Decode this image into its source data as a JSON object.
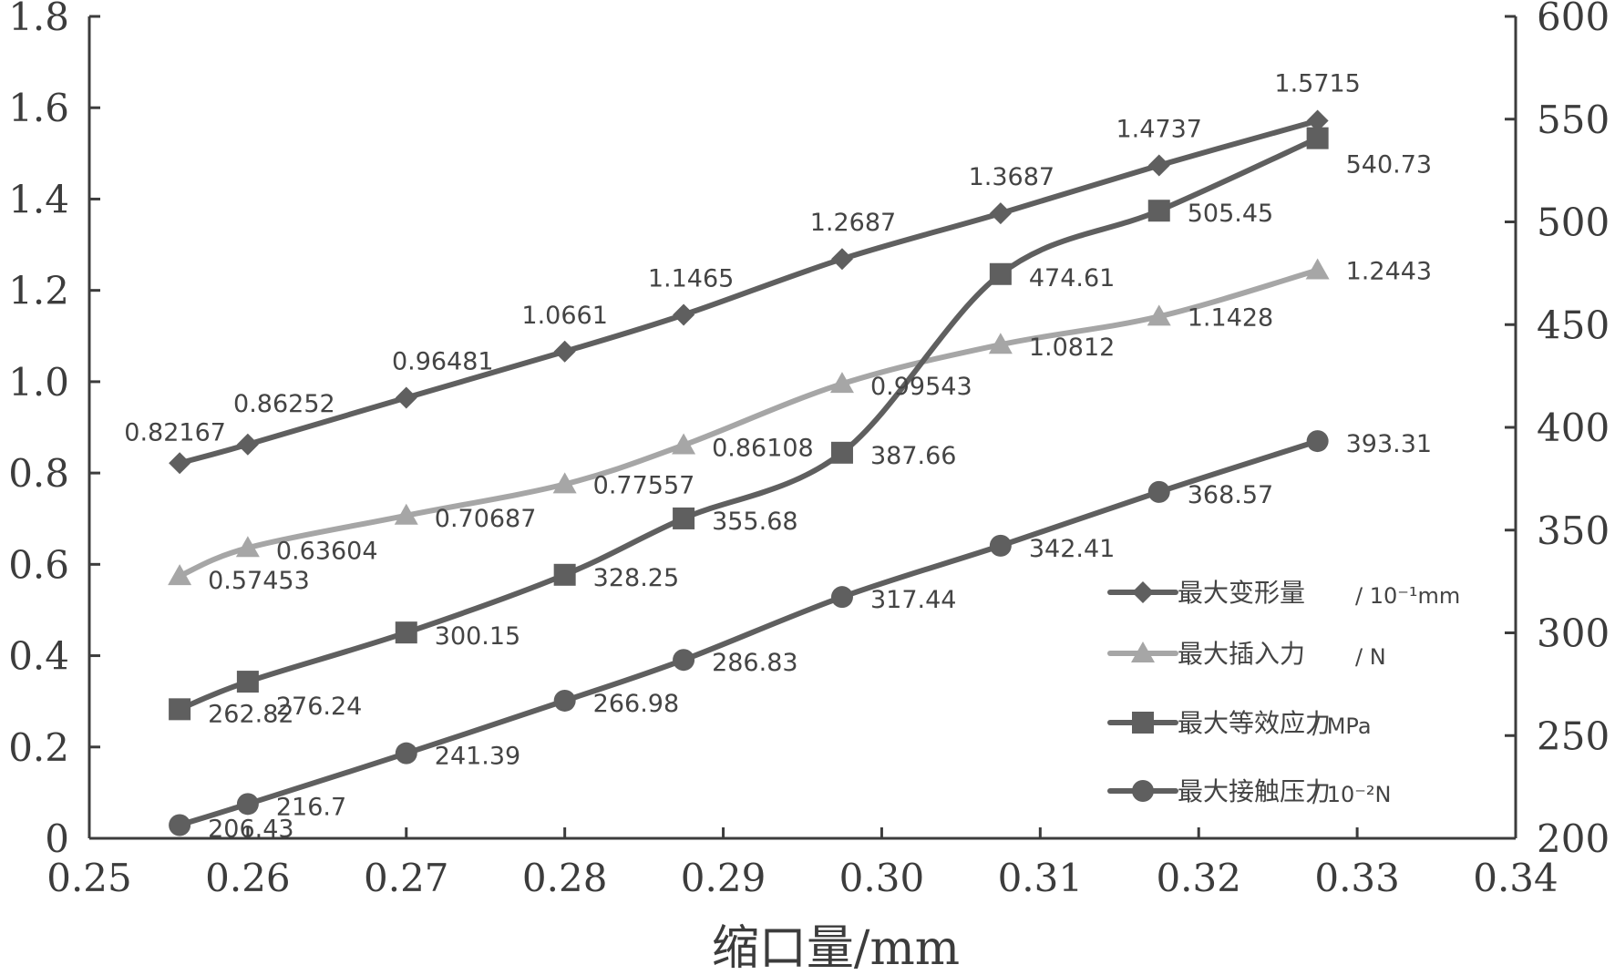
{
  "chart_data": {
    "type": "line",
    "title": "",
    "xlabel": "缩口量/mm",
    "ylabel_left": "",
    "ylabel_right": "",
    "xlim": [
      0.25,
      0.34
    ],
    "ylim_left": [
      0,
      1.8
    ],
    "ylim_right": [
      200,
      600
    ],
    "x_ticks": [
      "0.25",
      "0.26",
      "0.27",
      "0.28",
      "0.29",
      "0.30",
      "0.31",
      "0.32",
      "0.33",
      "0.34"
    ],
    "y_left_ticks": [
      "0",
      "0.2",
      "0.4",
      "0.6",
      "0.8",
      "1.0",
      "1.2",
      "1.4",
      "1.6",
      "1.8"
    ],
    "y_right_ticks": [
      "200",
      "250",
      "300",
      "350",
      "400",
      "450",
      "500",
      "550",
      "600"
    ],
    "x": [
      0.2557,
      0.26,
      0.27,
      0.28,
      0.2875,
      0.2975,
      0.3075,
      0.3175,
      0.3275
    ],
    "grid": false,
    "legend_position": "bottom-right",
    "colors": {
      "dark_series": "#5f5f5f",
      "light_series": "#a6a6a6",
      "axis": "#3c3c3c"
    },
    "series": [
      {
        "name": "最大变形量",
        "unit": "/ 10⁻¹mm",
        "axis": "left",
        "marker": "diamond",
        "color": "#5f5f5f",
        "values": [
          0.82167,
          0.86252,
          0.96481,
          1.0661,
          1.1465,
          1.2687,
          1.3687,
          1.4737,
          1.5715
        ],
        "labels": [
          "0.82167",
          "0.86252",
          "0.96481",
          "1.0661",
          "1.1465",
          "1.2687",
          "1.3687",
          "1.4737",
          "1.5715"
        ]
      },
      {
        "name": "最大插入力",
        "unit": "/ N",
        "axis": "left",
        "marker": "triangle",
        "color": "#a6a6a6",
        "values": [
          0.57453,
          0.63604,
          0.70687,
          0.77557,
          0.86108,
          0.99543,
          1.0812,
          1.1428,
          1.2443
        ],
        "labels": [
          "0.57453",
          "0.63604",
          "0.70687",
          "0.77557",
          "0.86108",
          "0.99543",
          "1.0812",
          "1.1428",
          "1.2443"
        ]
      },
      {
        "name": "最大等效应力",
        "unit": "/ MPa",
        "axis": "right",
        "marker": "square",
        "color": "#5f5f5f",
        "values": [
          262.82,
          276.24,
          300.15,
          328.25,
          355.68,
          387.66,
          474.61,
          505.45,
          540.73
        ],
        "labels": [
          "262.82",
          "276.24",
          "300.15",
          "328.25",
          "355.68",
          "387.66",
          "474.61",
          "505.45",
          "540.73"
        ]
      },
      {
        "name": "最大接触压力",
        "unit": "/ 10⁻²N",
        "axis": "right",
        "marker": "circle",
        "color": "#5f5f5f",
        "values": [
          206.43,
          216.7,
          241.39,
          266.98,
          286.83,
          317.44,
          342.41,
          368.57,
          393.31
        ],
        "labels": [
          "206.43",
          "216.7",
          "241.39",
          "266.98",
          "286.83",
          "317.44",
          "342.41",
          "368.57",
          "393.31"
        ]
      }
    ]
  }
}
